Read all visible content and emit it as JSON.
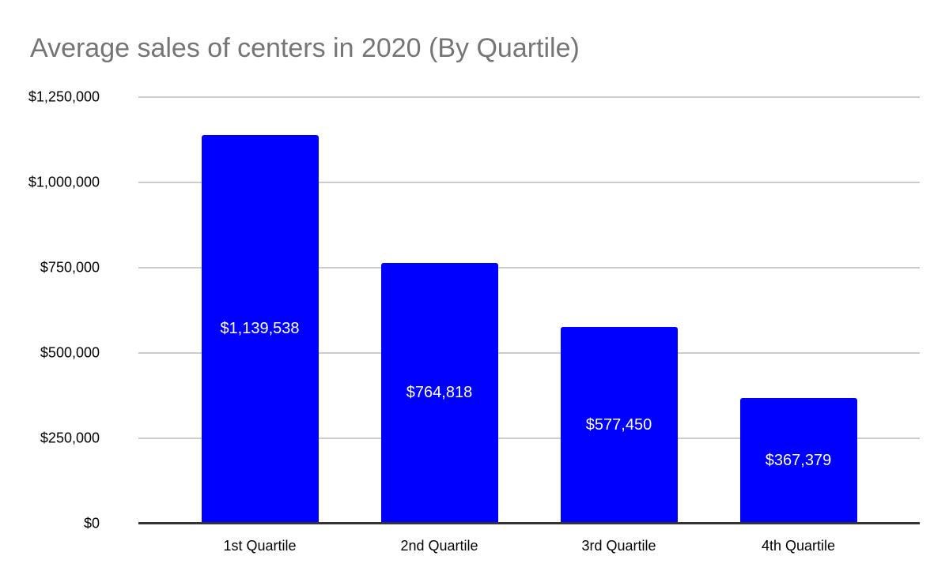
{
  "title": "Average sales of centers in 2020 (By Quartile)",
  "colors": {
    "bar": "#0000ff",
    "title_text": "#757575",
    "gridline": "#cccccc",
    "axis_line": "#333333",
    "axis_text": "#000000",
    "bar_label_text": "#ffffff",
    "background": "#ffffff"
  },
  "chart_data": {
    "type": "bar",
    "title": "Average sales of centers in 2020 (By Quartile)",
    "categories": [
      "1st Quartile",
      "2nd Quartile",
      "3rd Quartile",
      "4th Quartile"
    ],
    "values": [
      1139538,
      764818,
      577450,
      367379
    ],
    "data_labels": [
      "$1,139,538",
      "$764,818",
      "$577,450",
      "$367,379"
    ],
    "xlabel": "",
    "ylabel": "",
    "ylim": [
      0,
      1250000
    ],
    "y_ticks": [
      {
        "value": 0,
        "label": "$0"
      },
      {
        "value": 250000,
        "label": "$250,000"
      },
      {
        "value": 500000,
        "label": "$500,000"
      },
      {
        "value": 750000,
        "label": "$750,000"
      },
      {
        "value": 1000000,
        "label": "$1,000,000"
      },
      {
        "value": 1250000,
        "label": "$1,250,000"
      }
    ],
    "grid": true,
    "legend_position": "none",
    "data_label_position": "center"
  }
}
